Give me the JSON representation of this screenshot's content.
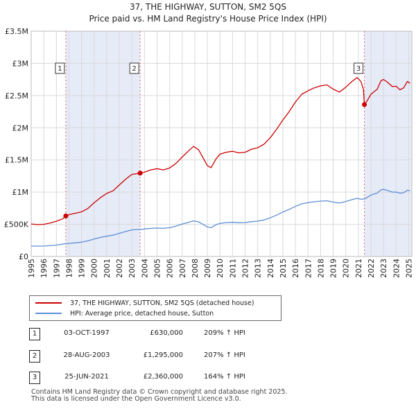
{
  "title_line1": "37, THE HIGHWAY, SUTTON, SM2 5QS",
  "title_line2": "Price paid vs. HM Land Registry's House Price Index (HPI)",
  "chart_data": {
    "type": "line",
    "x_axis": {
      "min": 1995.0,
      "max": 2025.25,
      "ticks": [
        1995,
        1996,
        1997,
        1998,
        1999,
        2000,
        2001,
        2002,
        2003,
        2004,
        2005,
        2006,
        2007,
        2008,
        2009,
        2010,
        2011,
        2012,
        2013,
        2014,
        2015,
        2016,
        2017,
        2018,
        2019,
        2020,
        2021,
        2022,
        2023,
        2024,
        2025
      ]
    },
    "y_axis": {
      "min": 0,
      "max": 3500000,
      "ticks": [
        0,
        500000,
        1000000,
        1500000,
        2000000,
        2500000,
        3000000,
        3500000
      ],
      "tick_labels": [
        "£0",
        "£500K",
        "£1M",
        "£1.5M",
        "£2M",
        "£2.5M",
        "£3M",
        "£3.5M"
      ]
    },
    "grid": true,
    "shaded_periods": [
      {
        "from": 1997.75,
        "to": 2003.66
      },
      {
        "from": 2021.48,
        "to": 2025.25
      }
    ],
    "series": [
      {
        "name": "37, THE HIGHWAY, SUTTON, SM2 5QS (detached house)",
        "color": "#cc0000",
        "points": [
          [
            1995.0,
            505000
          ],
          [
            1995.5,
            495000
          ],
          [
            1996.0,
            500000
          ],
          [
            1996.5,
            520000
          ],
          [
            1997.0,
            548000
          ],
          [
            1997.5,
            585000
          ],
          [
            1997.75,
            630000
          ],
          [
            1998.0,
            648000
          ],
          [
            1998.5,
            672000
          ],
          [
            1999.0,
            693000
          ],
          [
            1999.5,
            745000
          ],
          [
            2000.0,
            835000
          ],
          [
            2000.5,
            913000
          ],
          [
            2001.0,
            980000
          ],
          [
            2001.5,
            1020000
          ],
          [
            2002.0,
            1110000
          ],
          [
            2002.5,
            1200000
          ],
          [
            2003.0,
            1275000
          ],
          [
            2003.66,
            1295000
          ],
          [
            2004.0,
            1310000
          ],
          [
            2004.5,
            1345000
          ],
          [
            2005.0,
            1365000
          ],
          [
            2005.5,
            1345000
          ],
          [
            2006.0,
            1375000
          ],
          [
            2006.5,
            1445000
          ],
          [
            2007.0,
            1545000
          ],
          [
            2007.5,
            1640000
          ],
          [
            2007.9,
            1710000
          ],
          [
            2008.3,
            1660000
          ],
          [
            2008.7,
            1520000
          ],
          [
            2009.0,
            1410000
          ],
          [
            2009.3,
            1380000
          ],
          [
            2009.7,
            1520000
          ],
          [
            2010.0,
            1590000
          ],
          [
            2010.5,
            1620000
          ],
          [
            2011.0,
            1635000
          ],
          [
            2011.5,
            1610000
          ],
          [
            2012.0,
            1620000
          ],
          [
            2012.5,
            1665000
          ],
          [
            2013.0,
            1690000
          ],
          [
            2013.5,
            1745000
          ],
          [
            2014.0,
            1845000
          ],
          [
            2014.5,
            1975000
          ],
          [
            2015.0,
            2120000
          ],
          [
            2015.5,
            2250000
          ],
          [
            2016.0,
            2400000
          ],
          [
            2016.5,
            2520000
          ],
          [
            2017.0,
            2575000
          ],
          [
            2017.5,
            2620000
          ],
          [
            2018.0,
            2650000
          ],
          [
            2018.5,
            2665000
          ],
          [
            2019.0,
            2600000
          ],
          [
            2019.5,
            2555000
          ],
          [
            2020.0,
            2630000
          ],
          [
            2020.5,
            2720000
          ],
          [
            2020.9,
            2780000
          ],
          [
            2021.2,
            2720000
          ],
          [
            2021.4,
            2600000
          ],
          [
            2021.48,
            2360000
          ],
          [
            2021.7,
            2420000
          ],
          [
            2022.0,
            2520000
          ],
          [
            2022.5,
            2600000
          ],
          [
            2022.8,
            2730000
          ],
          [
            2023.0,
            2750000
          ],
          [
            2023.3,
            2710000
          ],
          [
            2023.7,
            2640000
          ],
          [
            2024.0,
            2645000
          ],
          [
            2024.3,
            2590000
          ],
          [
            2024.6,
            2620000
          ],
          [
            2024.9,
            2720000
          ],
          [
            2025.1,
            2690000
          ]
        ]
      },
      {
        "name": "HPI: Average price, detached house, Sutton",
        "color": "#5b8fd6",
        "points": [
          [
            1995.0,
            163000
          ],
          [
            1995.5,
            162000
          ],
          [
            1996.0,
            163000
          ],
          [
            1996.5,
            168000
          ],
          [
            1997.0,
            178000
          ],
          [
            1997.5,
            192000
          ],
          [
            1998.0,
            204000
          ],
          [
            1998.5,
            212000
          ],
          [
            1999.0,
            223000
          ],
          [
            1999.5,
            243000
          ],
          [
            2000.0,
            270000
          ],
          [
            2000.5,
            296000
          ],
          [
            2001.0,
            316000
          ],
          [
            2001.5,
            332000
          ],
          [
            2002.0,
            360000
          ],
          [
            2002.5,
            388000
          ],
          [
            2003.0,
            414000
          ],
          [
            2003.66,
            420000
          ],
          [
            2004.0,
            428000
          ],
          [
            2004.5,
            437000
          ],
          [
            2005.0,
            442000
          ],
          [
            2005.5,
            437000
          ],
          [
            2006.0,
            447000
          ],
          [
            2006.5,
            472000
          ],
          [
            2007.0,
            503000
          ],
          [
            2007.5,
            531000
          ],
          [
            2007.9,
            553000
          ],
          [
            2008.3,
            538000
          ],
          [
            2008.7,
            494000
          ],
          [
            2009.0,
            459000
          ],
          [
            2009.3,
            448000
          ],
          [
            2009.7,
            494000
          ],
          [
            2010.0,
            515000
          ],
          [
            2010.5,
            527000
          ],
          [
            2011.0,
            531000
          ],
          [
            2011.5,
            524000
          ],
          [
            2012.0,
            527000
          ],
          [
            2012.5,
            541000
          ],
          [
            2013.0,
            549000
          ],
          [
            2013.5,
            568000
          ],
          [
            2014.0,
            601000
          ],
          [
            2014.5,
            643000
          ],
          [
            2015.0,
            690000
          ],
          [
            2015.5,
            731000
          ],
          [
            2016.0,
            779000
          ],
          [
            2016.5,
            818000
          ],
          [
            2017.0,
            836000
          ],
          [
            2017.5,
            851000
          ],
          [
            2018.0,
            861000
          ],
          [
            2018.5,
            866000
          ],
          [
            2019.0,
            845000
          ],
          [
            2019.5,
            830000
          ],
          [
            2020.0,
            854000
          ],
          [
            2020.5,
            884000
          ],
          [
            2020.9,
            903000
          ],
          [
            2021.2,
            890000
          ],
          [
            2021.48,
            894000
          ],
          [
            2021.7,
            918000
          ],
          [
            2022.0,
            955000
          ],
          [
            2022.5,
            985000
          ],
          [
            2022.8,
            1035000
          ],
          [
            2023.0,
            1042000
          ],
          [
            2023.3,
            1027000
          ],
          [
            2023.7,
            1000000
          ],
          [
            2024.0,
            1002000
          ],
          [
            2024.3,
            982000
          ],
          [
            2024.6,
            992000
          ],
          [
            2024.9,
            1030000
          ],
          [
            2025.1,
            1020000
          ]
        ]
      }
    ],
    "markers": [
      {
        "label": "1",
        "x": 1997.75,
        "y": 630000
      },
      {
        "label": "2",
        "x": 2003.66,
        "y": 1295000
      },
      {
        "label": "3",
        "x": 2021.48,
        "y": 2360000
      }
    ]
  },
  "legend": [
    {
      "label": "37, THE HIGHWAY, SUTTON, SM2 5QS (detached house)",
      "color": "#cc0000"
    },
    {
      "label": "HPI: Average price, detached house, Sutton",
      "color": "#5b8fd6"
    }
  ],
  "sales": [
    {
      "num": "1",
      "date": "03-OCT-1997",
      "price": "£630,000",
      "hpi": "209% ↑ HPI"
    },
    {
      "num": "2",
      "date": "28-AUG-2003",
      "price": "£1,295,000",
      "hpi": "207% ↑ HPI"
    },
    {
      "num": "3",
      "date": "25-JUN-2021",
      "price": "£2,360,000",
      "hpi": "164% ↑ HPI"
    }
  ],
  "footer_line1": "Contains HM Land Registry data © Crown copyright and database right 2025.",
  "footer_line2": "This data is licensed under the Open Government Licence v3.0."
}
